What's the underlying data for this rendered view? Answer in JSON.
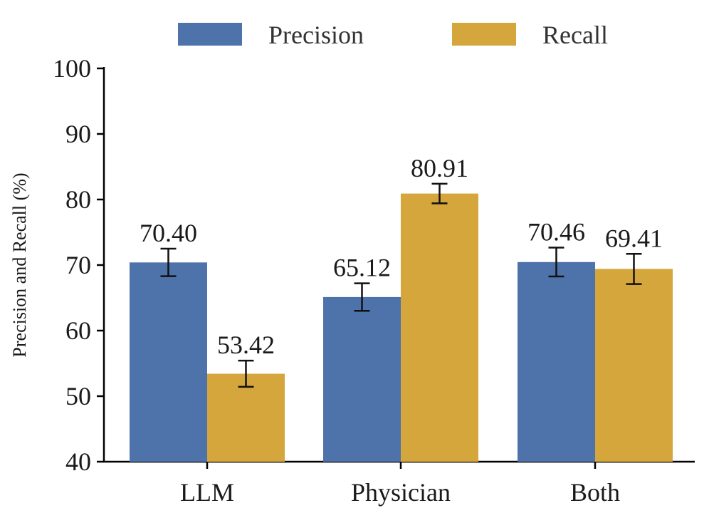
{
  "chart_data": {
    "type": "bar",
    "title": "",
    "xlabel": "",
    "ylabel": "Precision and Recall (%)",
    "ylim": [
      40,
      100
    ],
    "yticks": [
      40,
      50,
      60,
      70,
      80,
      90,
      100
    ],
    "categories": [
      "LLM",
      "Physician",
      "Both"
    ],
    "series": [
      {
        "name": "Precision",
        "color": "#4e72aa",
        "values": [
          70.4,
          65.12,
          70.46
        ],
        "labels": [
          "70.40",
          "65.12",
          "70.46"
        ],
        "errors": [
          2.1,
          2.1,
          2.2
        ]
      },
      {
        "name": "Recall",
        "color": "#d4a63b",
        "values": [
          53.42,
          80.91,
          69.41
        ],
        "labels": [
          "53.42",
          "80.91",
          "69.41"
        ],
        "errors": [
          2.0,
          1.5,
          2.3
        ]
      }
    ],
    "legend": "top"
  }
}
